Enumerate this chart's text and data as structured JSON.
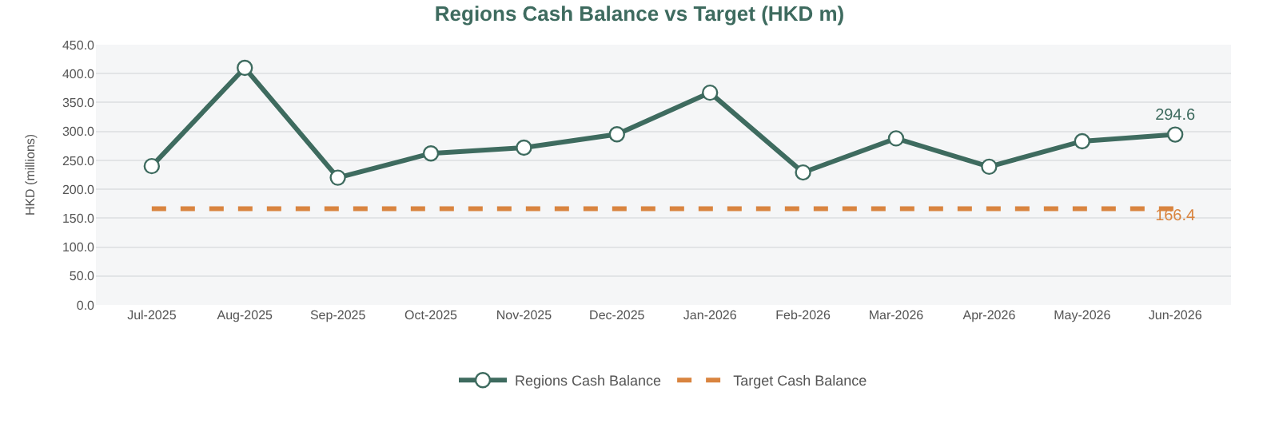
{
  "chart_data": {
    "type": "line",
    "title": "Regions Cash Balance vs Target (HKD m)",
    "ylabel": "HKD (millions)",
    "categories": [
      "Jul-2025",
      "Aug-2025",
      "Sep-2025",
      "Oct-2025",
      "Nov-2025",
      "Dec-2025",
      "Jan-2026",
      "Feb-2026",
      "Mar-2026",
      "Apr-2026",
      "May-2026",
      "Jun-2026"
    ],
    "series": [
      {
        "name": "Regions Cash Balance",
        "color": "#3e6b5f",
        "marker": "circle",
        "line_style": "solid",
        "values": [
          240,
          410,
          220,
          262,
          272,
          295,
          367,
          229,
          288,
          239,
          283,
          294.6
        ],
        "value_labels": [
          null,
          null,
          null,
          null,
          null,
          null,
          null,
          null,
          null,
          null,
          null,
          "294.6"
        ]
      },
      {
        "name": "Target Cash Balance",
        "color": "#d9843f",
        "marker": "none",
        "line_style": "dashed",
        "values": [
          166.4,
          166.4,
          166.4,
          166.4,
          166.4,
          166.4,
          166.4,
          166.4,
          166.4,
          166.4,
          166.4,
          166.4
        ],
        "value_labels": [
          null,
          null,
          null,
          null,
          null,
          null,
          null,
          null,
          null,
          null,
          null,
          "166.4"
        ]
      }
    ],
    "ylim": [
      0,
      450
    ],
    "yticks": [
      {
        "value": 0,
        "label": "0.0"
      },
      {
        "value": 50,
        "label": "50.0"
      },
      {
        "value": 100,
        "label": "100.0"
      },
      {
        "value": 150,
        "label": "150.0"
      },
      {
        "value": 200,
        "label": "200.0"
      },
      {
        "value": 250,
        "label": "250.0"
      },
      {
        "value": 300,
        "label": "300.0"
      },
      {
        "value": 350,
        "label": "350.0"
      },
      {
        "value": 400,
        "label": "400.0"
      },
      {
        "value": 450,
        "label": "450.0"
      }
    ],
    "grid": "y",
    "legend": "bottom"
  }
}
